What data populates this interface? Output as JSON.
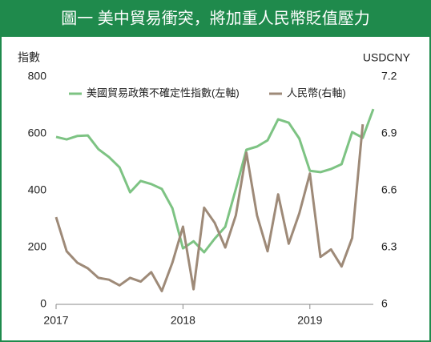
{
  "chart_data": {
    "type": "line",
    "title": "圖一 美中貿易衝突，將加重人民幣貶值壓力",
    "ylabel": "指數",
    "y2label": "USDCNY",
    "x": [
      2017,
      2017.0833,
      2017.1667,
      2017.25,
      2017.3333,
      2017.4167,
      2017.5,
      2017.5833,
      2017.6667,
      2017.75,
      2017.8333,
      2017.9167,
      2018,
      2018.0833,
      2018.1667,
      2018.25,
      2018.3333,
      2018.4167,
      2018.5,
      2018.5833,
      2018.6667,
      2018.75,
      2018.8333,
      2018.9167,
      2019,
      2019.0833,
      2019.1667,
      2019.25,
      2019.3333,
      2019.4167,
      2019.5
    ],
    "xlim": [
      2017,
      2019.5
    ],
    "xticks": [
      2017,
      2018,
      2019
    ],
    "ylim": [
      0,
      800
    ],
    "yticks": [
      0,
      200,
      400,
      600,
      800
    ],
    "y2lim": [
      6,
      7.2
    ],
    "y2ticks": [
      6,
      6.3,
      6.6,
      6.9,
      7.2
    ],
    "legend": "top",
    "series": [
      {
        "name": "美國貿易政策不確定性指數(左軸)",
        "color": "#7dc383",
        "axis": "y",
        "values": [
          589,
          580,
          592,
          594,
          546,
          518,
          482,
          394,
          434,
          423,
          406,
          338,
          197,
          222,
          183,
          231,
          273,
          406,
          544,
          555,
          577,
          651,
          639,
          583,
          470,
          465,
          476,
          493,
          606,
          586,
          687
        ]
      },
      {
        "name": "人民幣(右軸)",
        "color": "#9e8a78",
        "axis": "y2",
        "values": [
          6.46,
          6.28,
          6.22,
          6.19,
          6.14,
          6.13,
          6.1,
          6.14,
          6.12,
          6.17,
          6.07,
          6.22,
          6.41,
          6.08,
          6.51,
          6.43,
          6.3,
          6.47,
          6.8,
          6.47,
          6.28,
          6.58,
          6.32,
          6.48,
          6.69,
          6.25,
          6.29,
          6.2,
          6.35,
          6.95,
          null
        ]
      }
    ]
  }
}
